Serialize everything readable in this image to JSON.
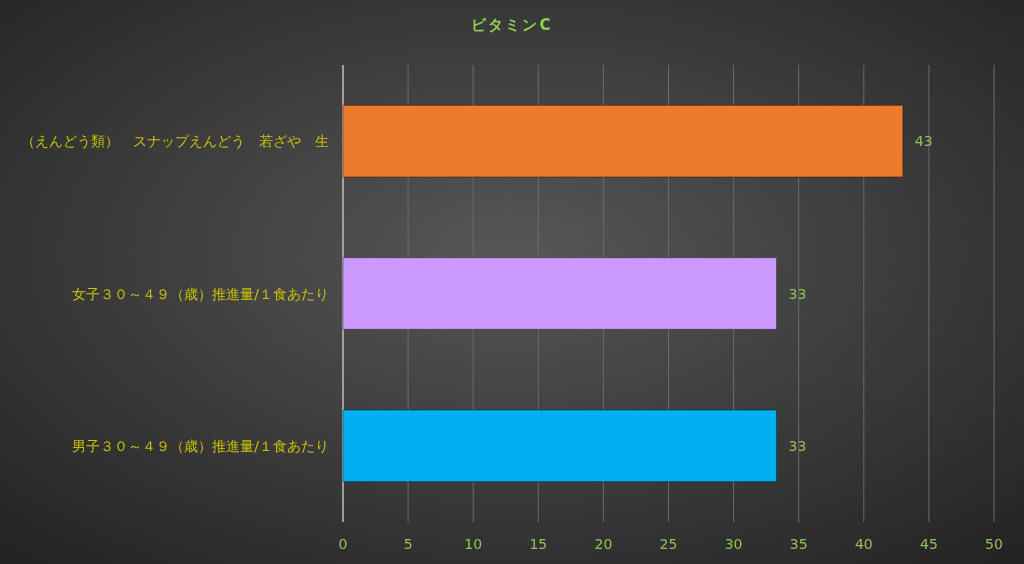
{
  "chart_data": {
    "type": "bar",
    "orientation": "horizontal",
    "title": "ビタミンC",
    "categories": [
      "（えんどう類）　スナップえんどう　若ざや　生",
      "女子３０～４９（歳）推進量/１食あたり",
      "男子３０～４９（歳）推進量/１食あたり"
    ],
    "values": [
      43,
      33.3,
      33.3
    ],
    "value_labels": [
      "43",
      "33",
      "33"
    ],
    "colors": [
      "#ee7a2c",
      "#cc99ff",
      "#00b0f0"
    ],
    "xlim": [
      0,
      50
    ],
    "xticks": [
      0,
      5,
      10,
      15,
      20,
      25,
      30,
      35,
      40,
      45,
      50
    ],
    "grid": "x"
  }
}
